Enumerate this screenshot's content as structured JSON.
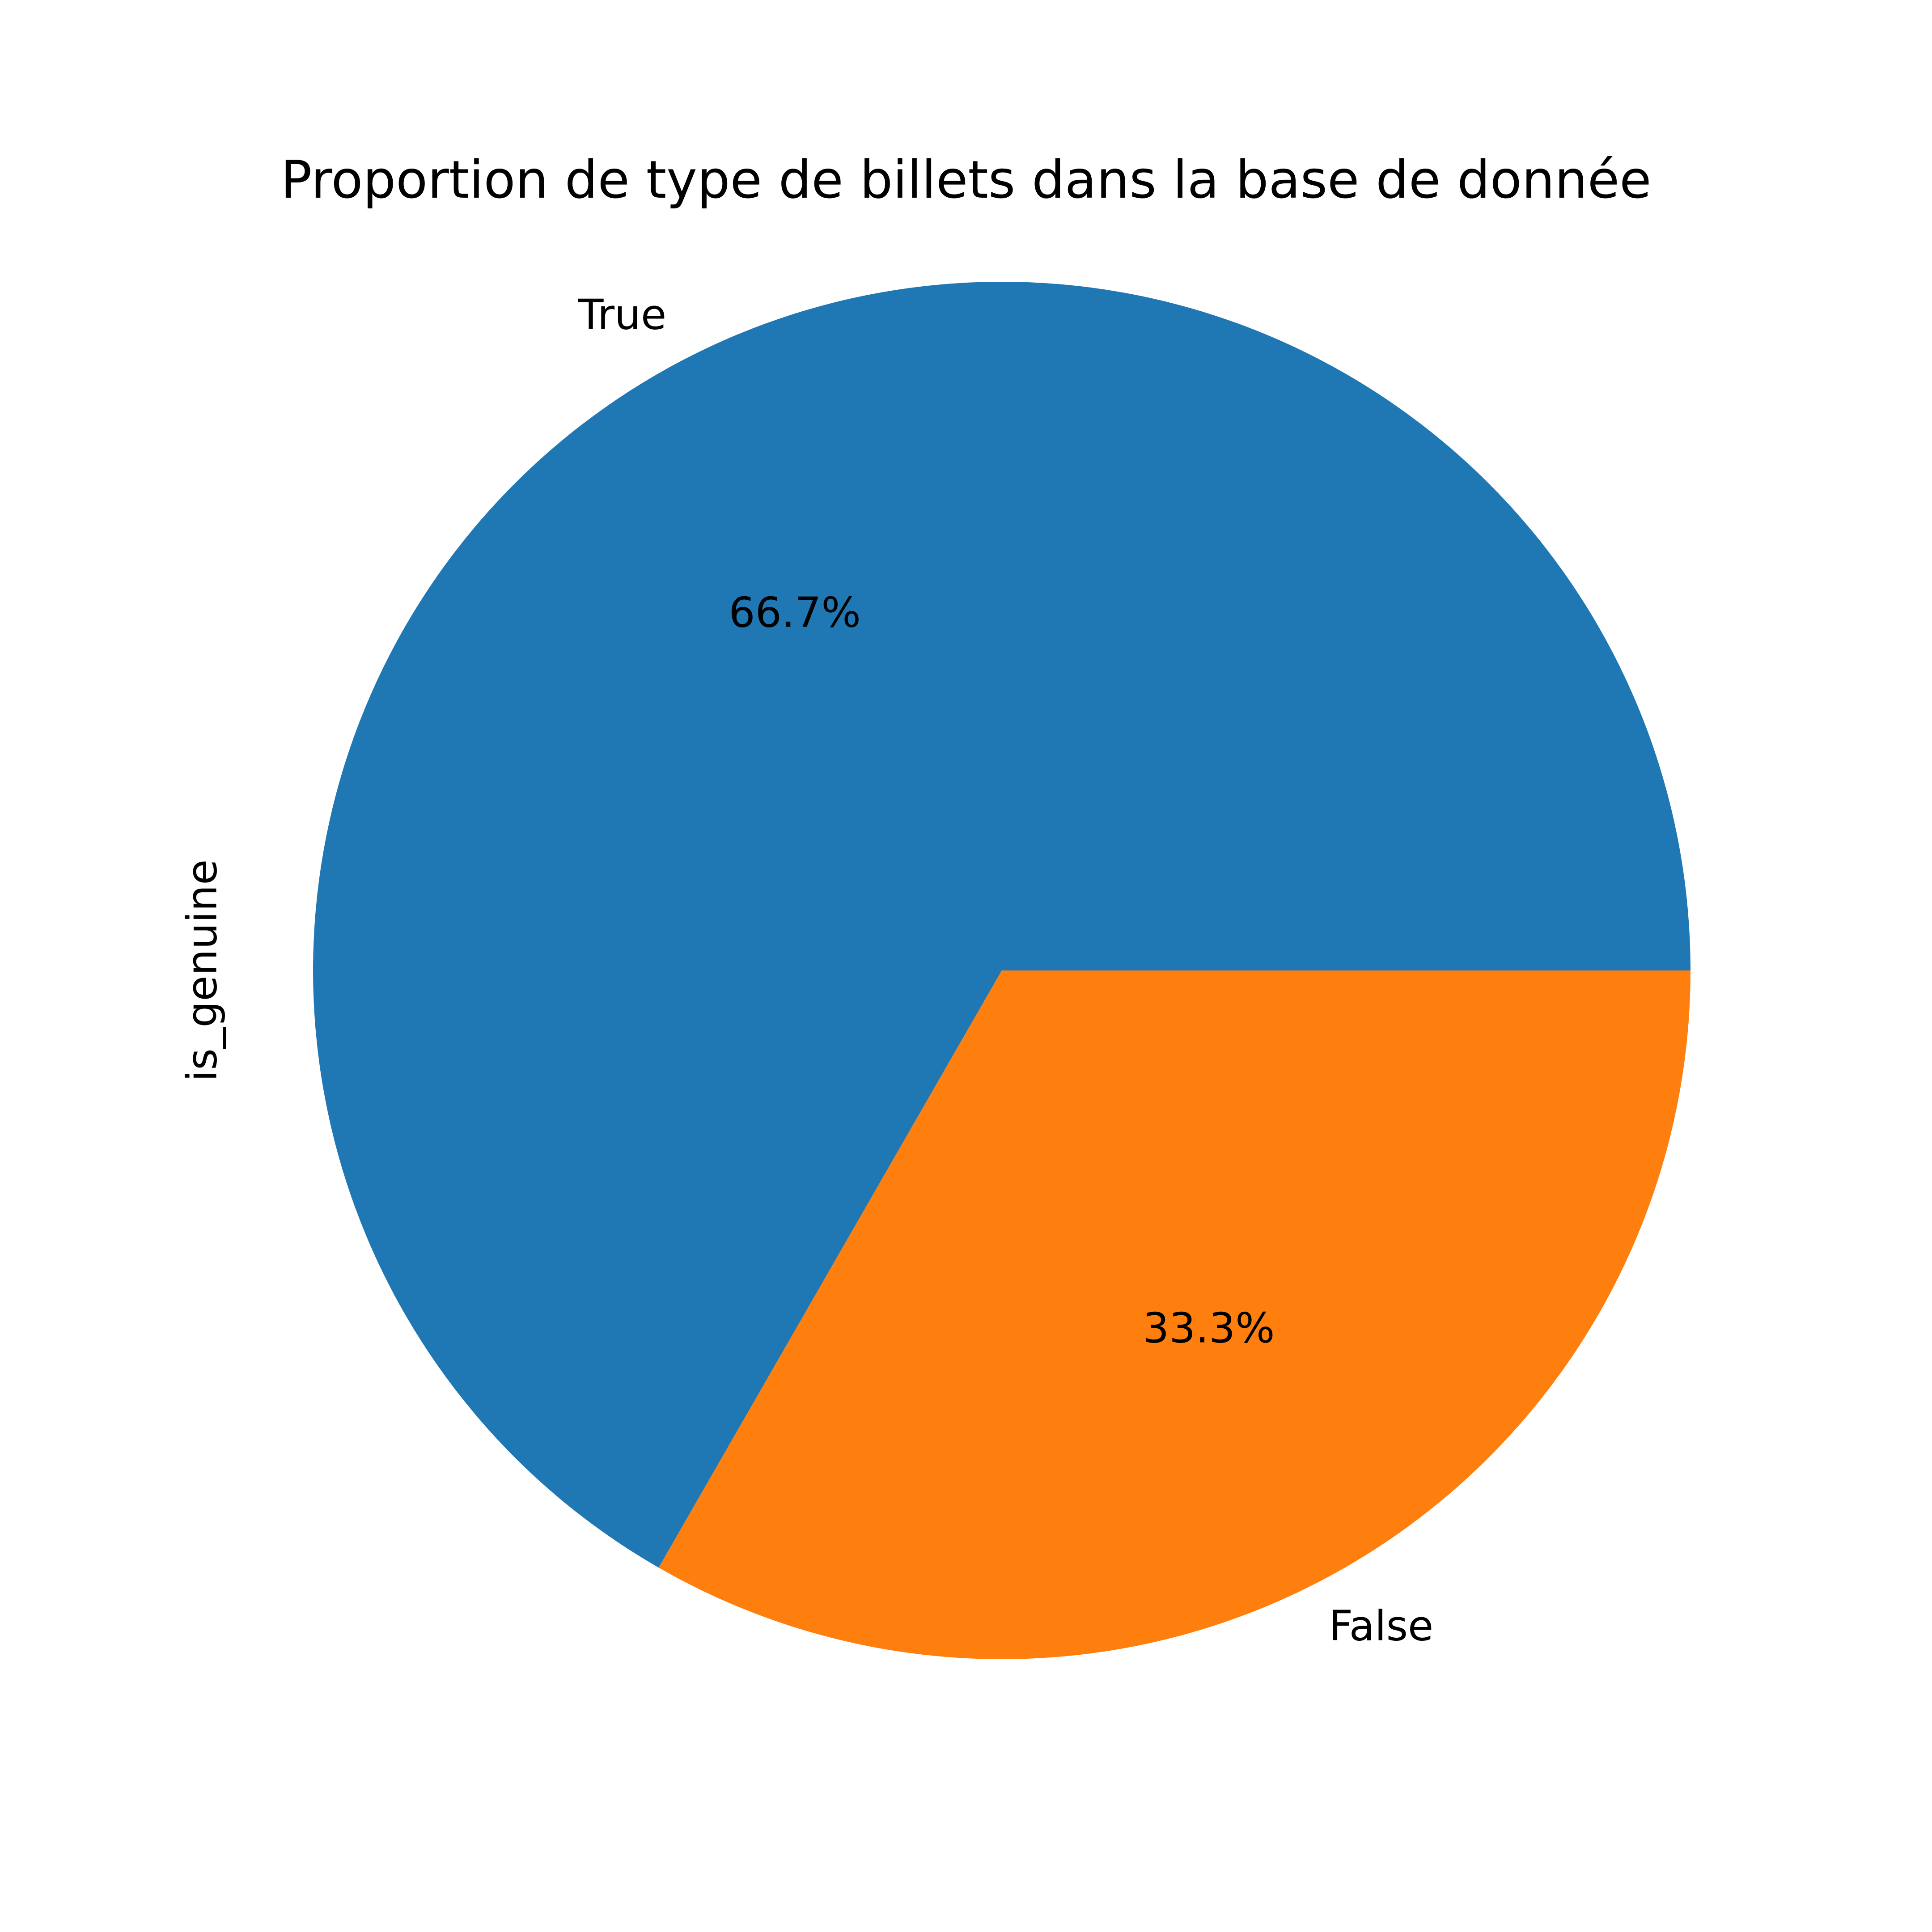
{
  "chart_data": {
    "type": "pie",
    "title": "Proportion de type de billets dans la base de donnée",
    "ylabel": "is_genuine",
    "categories": [
      "True",
      "False"
    ],
    "values": [
      66.7,
      33.3
    ],
    "percent_labels": [
      "66.7%",
      "33.3%"
    ],
    "colors": [
      "#1f77b4",
      "#ff7f0e"
    ],
    "start_angle_deg": 0,
    "direction": "counterclockwise"
  }
}
